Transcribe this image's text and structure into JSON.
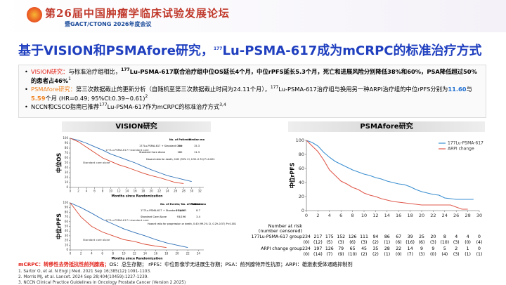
{
  "header": {
    "title": "第26届中国肿瘤学临床试验发展论坛",
    "subtitle": "暨GACT/CTONG 2026年度会议"
  },
  "slide_title": [
    {
      "text": "基于VISION和PSMAfore研究，"
    },
    {
      "text": "177",
      "sup": true
    },
    {
      "text": "Lu-PSMA-617成为mCRPC的标准治疗方式"
    }
  ],
  "bullets": [
    [
      {
        "text": "VISION研究：",
        "color": "#e2231a"
      },
      {
        "text": "与标准治疗组相比，"
      },
      {
        "text": "177",
        "sup": true,
        "bold": true
      },
      {
        "text": "Lu-PSMA-617联合治疗组中位OS延长4个月，中位rPFS延长5.3个月，死亡和进展风险分别降低38%和60%，PSA降低超过50%的患者占46%",
        "bold": true
      },
      {
        "text": "1",
        "sup": true
      }
    ],
    [
      {
        "text": "PSMAfore研究：",
        "color": "#f0821e"
      },
      {
        "text": "第三次数据截止的更新分析（自随机至第三次数据截止时间为24.11个月），"
      },
      {
        "text": "177",
        "sup": true
      },
      {
        "text": "Lu-PSMA-617治疗组与换用另一种ARPI治疗组的中位rPFS分别为"
      },
      {
        "text": "11.60",
        "color": "#1f6fd1",
        "bold": true
      },
      {
        "text": "与"
      },
      {
        "text": "5.59",
        "color": "#f0821e",
        "bold": true
      },
      {
        "text": "个月 (HR=0.49; 95%CI:0.39~0.61)"
      },
      {
        "text": "2",
        "sup": true
      }
    ],
    [
      {
        "text": "NCCN和CSCO指南已推荐"
      },
      {
        "text": "177",
        "sup": true
      },
      {
        "text": "Lu-PSMA-617作为mCRPC的标准治疗方式"
      },
      {
        "text": "3,4",
        "sup": true
      }
    ]
  ],
  "panels": [
    "VISION研究",
    "PSMAfore研究"
  ],
  "chart_data": [
    {
      "type": "line",
      "step": true,
      "ylabel": "中位OS",
      "xlabel": "Months since Randomization",
      "x": [
        0,
        2,
        4,
        6,
        8,
        10,
        12,
        14,
        16,
        18,
        20,
        22,
        24,
        26,
        28,
        30
      ],
      "xlim": [
        0,
        33
      ],
      "xticks": [
        0,
        2,
        4,
        6,
        8,
        10,
        12,
        14,
        16,
        18,
        20,
        22,
        24,
        26,
        28,
        30,
        32
      ],
      "ylim": [
        0,
        100
      ],
      "yticks": [
        0,
        10,
        20,
        30,
        40,
        50,
        60,
        70,
        80,
        90,
        100
      ],
      "series": [
        {
          "name": "177Lu-PSMA-617+standard care",
          "color": "#2d6fb6",
          "values": [
            100,
            96,
            90,
            83,
            76,
            68,
            62,
            56,
            50,
            43,
            36,
            30,
            24,
            20,
            16,
            12
          ]
        },
        {
          "name": "Standard care alone",
          "color": "#d8452f",
          "values": [
            100,
            93,
            82,
            71,
            60,
            53,
            46,
            41,
            35,
            29,
            24,
            20,
            15,
            10,
            8,
            null
          ]
        }
      ],
      "annotation": {
        "header": [
          "No. of Patients",
          "Median mo"
        ],
        "rows": [
          {
            "label": "177Lu-PSMA-617 + Standard Care",
            "cells": [
              551,
              15.3
            ]
          },
          {
            "label": "Standard Care Alone",
            "cells": [
              280,
              11.3
            ]
          }
        ],
        "note": "Hazard ratio for death, 0.62 (95% CI, 0.52–0.74) P<0.001"
      }
    },
    {
      "type": "line",
      "step": true,
      "ylabel": "中位rPFS",
      "xlabel": "Months since Randomization",
      "x": [
        0,
        2,
        4,
        6,
        8,
        10,
        12,
        14,
        16,
        18,
        20,
        22
      ],
      "xlim": [
        0,
        25
      ],
      "xticks": [
        0,
        2,
        4,
        6,
        8,
        10,
        12,
        14,
        16,
        18,
        20,
        22,
        24
      ],
      "ylim": [
        0,
        100
      ],
      "yticks": [
        0,
        10,
        20,
        30,
        40,
        50,
        60,
        70,
        80,
        90,
        100
      ],
      "series": [
        {
          "name": "177Lu-PSMA-617+standard care",
          "color": "#2d6fb6",
          "values": [
            100,
            90,
            78,
            65,
            55,
            45,
            37,
            30,
            22,
            15,
            10,
            5
          ]
        },
        {
          "name": "Standard care alone",
          "color": "#d8452f",
          "values": [
            100,
            70,
            50,
            38,
            30,
            22,
            18,
            12,
            8,
            5,
            null,
            null
          ]
        }
      ],
      "annotation": {
        "header": [
          "No. of Events/ No. of Patients",
          "Median mo"
        ],
        "rows": [
          {
            "label": "177Lu-PSMA-617 + Standard Care",
            "cells": [
              "254/385",
              8.7
            ]
          },
          {
            "label": "Standard Care Alone",
            "cells": [
              "93/196",
              3.4
            ]
          }
        ],
        "note": "Hazard ratio for progression or death, 0.40 (99.2% CI, 0.29–0.57) P<0.001"
      }
    },
    {
      "type": "line",
      "step": true,
      "ylabel": "中位rPFS",
      "legend": "upper right",
      "x": [
        0,
        1,
        2,
        3,
        4,
        5,
        6,
        7,
        8,
        9,
        10,
        11,
        12,
        13,
        14,
        15,
        16,
        17,
        18,
        19,
        20,
        21,
        22,
        23,
        24,
        25,
        26,
        27,
        28,
        29
      ],
      "xlim": [
        0,
        30
      ],
      "xticks": [
        0,
        2,
        4,
        6,
        8,
        10,
        12,
        14,
        16,
        18,
        20,
        22,
        24,
        26,
        28,
        30
      ],
      "ylim": [
        0,
        100
      ],
      "yticks": [
        0,
        20,
        40,
        60,
        80,
        100
      ],
      "series": [
        {
          "name": "177Lu-PSMA-617",
          "color": "#3b8fd0",
          "values": [
            100,
            97,
            92,
            83,
            76,
            70,
            66,
            62,
            58,
            55,
            52,
            50,
            47,
            45,
            42,
            40,
            38,
            37,
            34,
            30,
            27,
            25,
            23,
            22,
            18,
            17,
            16,
            16,
            16,
            16
          ]
        },
        {
          "name": "ARPI change",
          "color": "#e05a4e",
          "values": [
            100,
            92,
            84,
            72,
            58,
            50,
            42,
            38,
            33,
            30,
            25,
            22,
            20,
            17,
            15,
            13,
            12,
            11,
            10,
            9,
            8,
            8,
            8,
            8,
            8,
            8,
            5,
            2,
            2,
            null
          ]
        }
      ],
      "at_risk": {
        "title": "Number at risk",
        "subtitle": "(number censored)",
        "rows": [
          {
            "label": "177Lu-PSMA-617 group",
            "counts": [
              234,
              217,
              175,
              152,
              126,
              111,
              94,
              86,
              67,
              39,
              25,
              20,
              8,
              4,
              4,
              0
            ],
            "censored": [
              "(0)",
              "(12)",
              "(5)",
              "(3)",
              "(6)",
              "(3)",
              "(2)",
              "(1)",
              "(6)",
              "(16)",
              "(6)",
              "(3)",
              "(10)",
              "(3)",
              "(0)",
              "(4)"
            ]
          },
          {
            "label": "ARPI change group",
            "counts": [
              234,
              197,
              126,
              79,
              65,
              45,
              35,
              28,
              22,
              14,
              9,
              9,
              5,
              2,
              1,
              0
            ],
            "censored": [
              "(0)",
              "(14)",
              "(7)",
              "(9)",
              "(10)",
              "(2)",
              "(2)",
              "(1)",
              "(0)",
              "(7)",
              "(3)",
              "(0)",
              "(4)",
              "(3)",
              "(1)",
              "(1)"
            ]
          }
        ]
      }
    }
  ],
  "footnote": [
    {
      "text": "mCRPC：转移性去势抵抗性前列腺癌；",
      "color": "#e2231a",
      "bold": true
    },
    {
      "text": "OS：总生存期； rPFS：中位影像学无进展生存期；PSA：前列腺特异性抗原；ARPI：雄激素受体通路抑制剂"
    }
  ],
  "references": [
    "1. Sartor O, et al. N Engl J Med. 2021 Sep 16;385(12):1091-1103.",
    "2. Morris MJ, et al. Lancet. 2024 Sep 28;404(10459):1227-1239.",
    "3. NCCN Clinical Practice Guidelines in Oncology Prostate Cancer (Version 2.2025)"
  ]
}
